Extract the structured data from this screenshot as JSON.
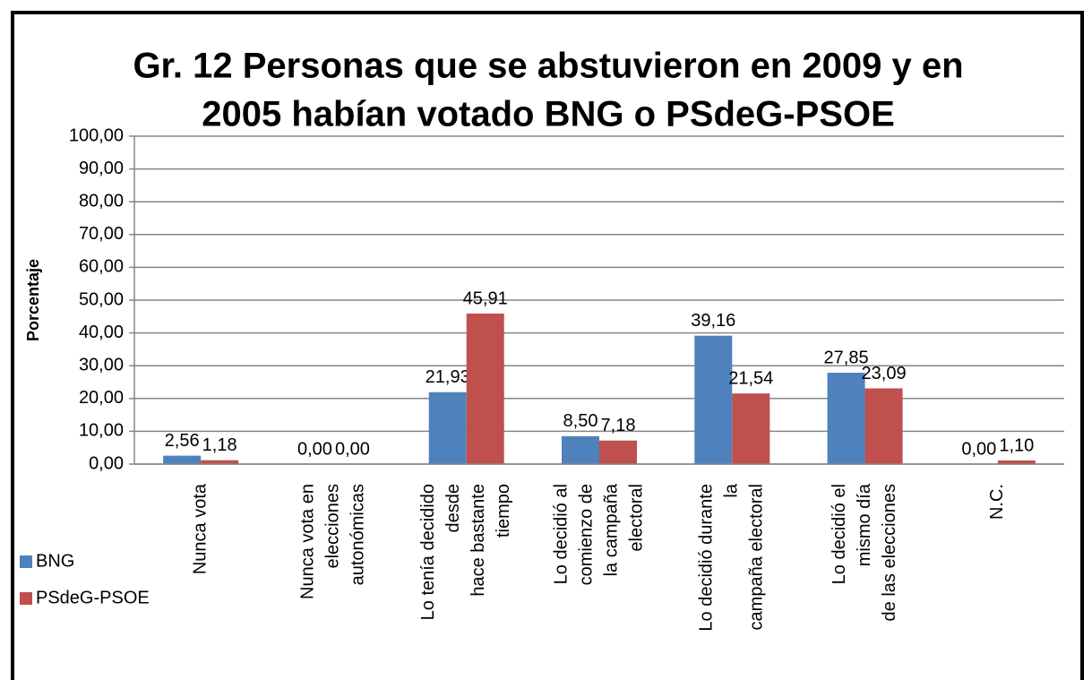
{
  "chart_data": {
    "type": "bar",
    "title": [
      "Gr. 12 Personas que se abstuvieron en 2009 y en",
      "2005 habían votado BNG o PSdeG-PSOE"
    ],
    "y_axis_label": "Porcentaje",
    "categories": [
      [
        "Nunca vota"
      ],
      [
        "Nunca vota en",
        "elecciones",
        "autonómicas"
      ],
      [
        "Lo tenía decidido",
        "desde",
        "hace bastante",
        "tiempo"
      ],
      [
        "Lo decidió al",
        "comienzo de",
        "la campaña",
        "electoral"
      ],
      [
        "Lo decidió durante",
        "la",
        "campaña electoral"
      ],
      [
        "Lo decidió el",
        "mismo día",
        "de las elecciones"
      ],
      [
        "N.C."
      ]
    ],
    "series": [
      {
        "name": "BNG",
        "color": "#4f81bd",
        "values": [
          2.56,
          0,
          21.93,
          8.5,
          39.16,
          27.85,
          0
        ],
        "value_labels": [
          "2,56",
          "0,00",
          "21,93",
          "8,50",
          "39,16",
          "27,85",
          "0,00"
        ]
      },
      {
        "name": "PSdeG-PSOE",
        "color": "#c0504d",
        "values": [
          1.18,
          0,
          45.91,
          7.18,
          21.54,
          23.09,
          1.1
        ],
        "value_labels": [
          "1,18",
          "0,00",
          "45,91",
          "7,18",
          "21,54",
          "23,09",
          "1,10"
        ]
      }
    ],
    "ylim": [
      0,
      100
    ],
    "yticks": [
      {
        "value": 0,
        "label": "0,00"
      },
      {
        "value": 10,
        "label": "10,00"
      },
      {
        "value": 20,
        "label": "20,00"
      },
      {
        "value": 30,
        "label": "30,00"
      },
      {
        "value": 40,
        "label": "40,00"
      },
      {
        "value": 50,
        "label": "50,00"
      },
      {
        "value": 60,
        "label": "60,00"
      },
      {
        "value": 70,
        "label": "70,00"
      },
      {
        "value": 80,
        "label": "80,00"
      },
      {
        "value": 90,
        "label": "90,00"
      },
      {
        "value": 100,
        "label": "100,00"
      }
    ],
    "grid": true,
    "legend": "bottom-left"
  }
}
